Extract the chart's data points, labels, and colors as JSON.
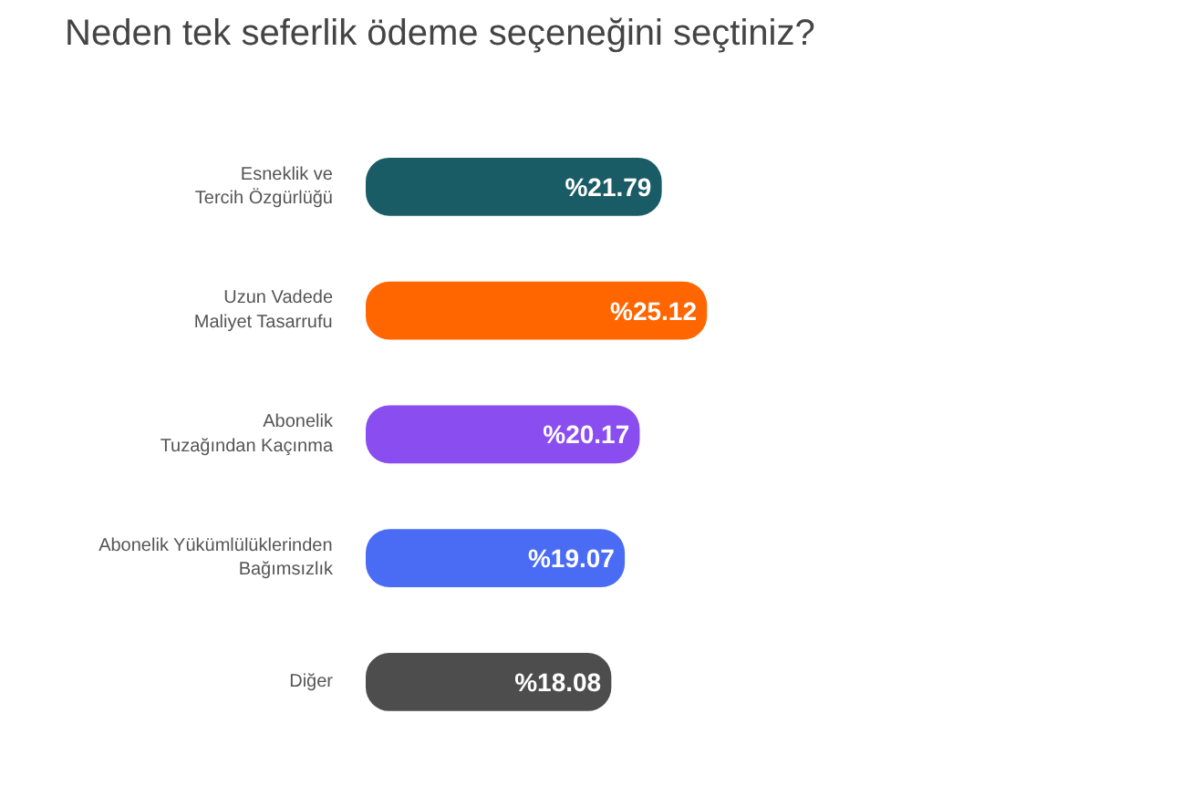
{
  "chart_data": {
    "type": "bar",
    "orientation": "horizontal",
    "title": "Neden tek seferlik ödeme seçeneğini seçtiniz?",
    "categories": [
      "Esneklik ve Tercih Özgürlüğü",
      "Uzun Vadede Maliyet Tasarrufu",
      "Abonelik Tuzağından Kaçınma",
      "Abonelik Yükümlülüklerinden Bağımsızlık",
      "Diğer"
    ],
    "values": [
      21.79,
      25.12,
      20.17,
      19.07,
      18.08
    ],
    "colors": [
      "#1a5c66",
      "#ff6600",
      "#8a4df0",
      "#4a6cf5",
      "#4d4d4d"
    ],
    "value_labels": [
      "%21.79",
      "%25.12",
      "%20.17",
      "%19.07",
      "%18.08"
    ],
    "grid": false
  }
}
